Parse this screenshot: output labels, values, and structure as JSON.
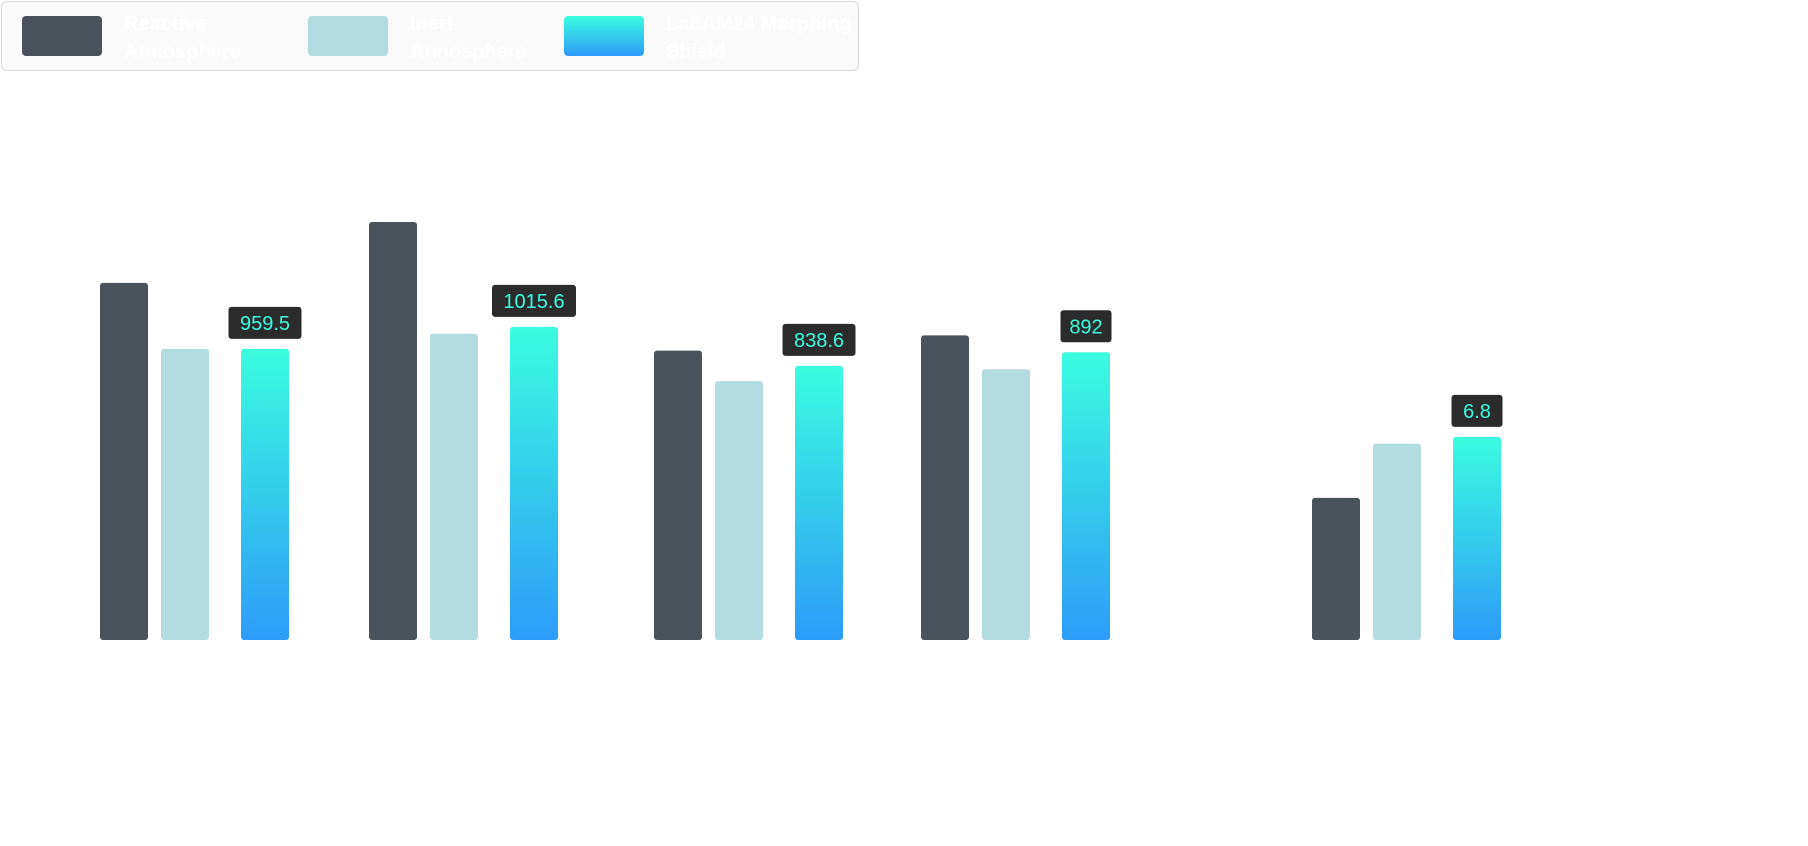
{
  "chart_data": {
    "type": "bar",
    "categories": [
      "",
      "",
      "",
      "",
      ""
    ],
    "series": [
      {
        "name": "Reactive Atmosphere",
        "values": [
          1055,
          1235,
          855,
          900,
          420
        ],
        "color": "#4a525c"
      },
      {
        "name": "Inert Atmosphere",
        "values": [
          860,
          905,
          765,
          800,
          580
        ],
        "color": "#b3dce0"
      },
      {
        "name": "LabAM24 Morphing Shield",
        "values": [
          959.5,
          1015.6,
          838.6,
          892,
          6.8
        ],
        "color_top": "#3bfce0",
        "color_bottom": "#2d9cf8"
      }
    ],
    "data_labels": [
      "959.5",
      "1015.6",
      "838.6",
      "892",
      "6.8"
    ],
    "ylim": [
      0,
      1300
    ],
    "grid": false,
    "legend": "top-left",
    "title": "",
    "xlabel": "",
    "ylabel": ""
  },
  "colors": {
    "label_bg": "#2b2b2b",
    "label_text": "#3bfce0"
  }
}
